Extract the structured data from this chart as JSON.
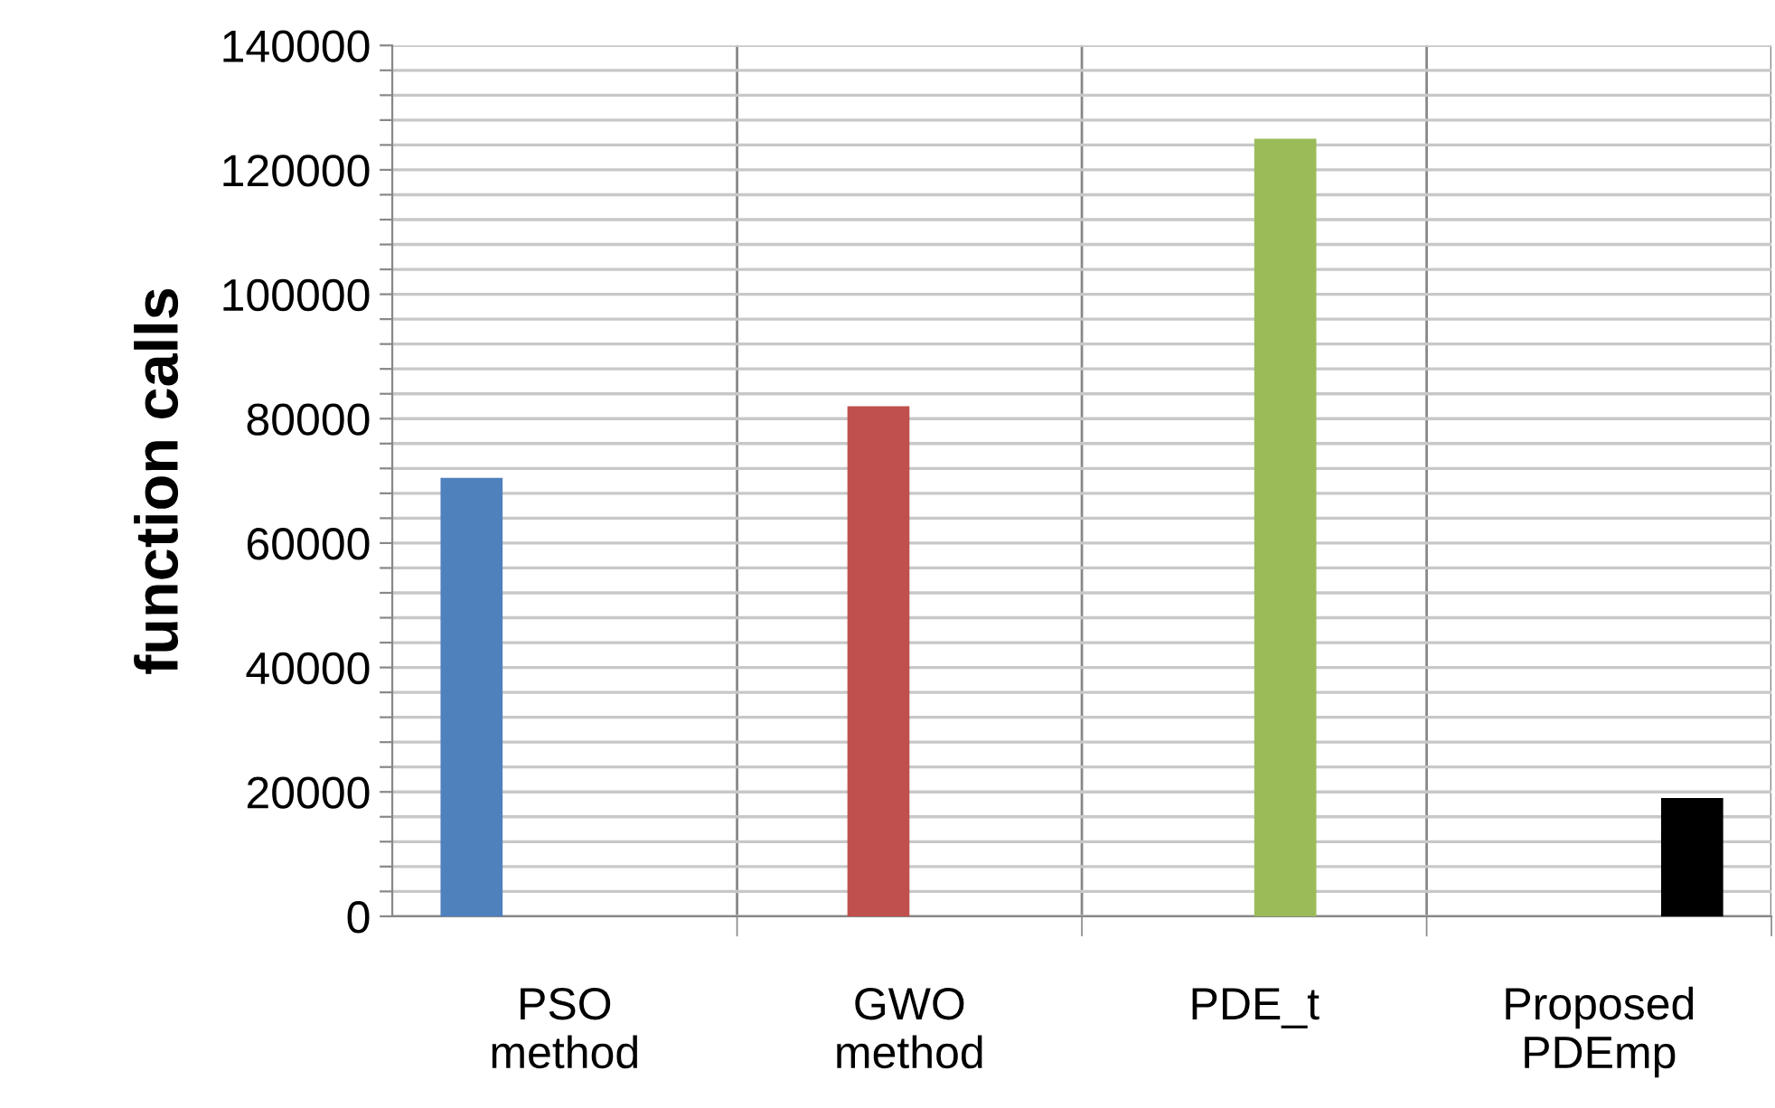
{
  "chart_data": {
    "type": "bar",
    "ylabel": "function calls",
    "categories": [
      "PSO\nmethod",
      "GWO\nmethod",
      "PDE_t",
      "Proposed\nPDEmp"
    ],
    "series": [
      {
        "color": "#4f81bd",
        "values": [
          70500,
          null,
          null,
          null
        ]
      },
      {
        "color": "#c0504d",
        "values": [
          null,
          82000,
          null,
          null
        ]
      },
      {
        "color": "#9bbb59",
        "values": [
          null,
          null,
          125000,
          null
        ]
      },
      {
        "color": "#000000",
        "values": [
          null,
          null,
          null,
          19000
        ]
      }
    ],
    "ylim": [
      0,
      140000
    ],
    "yticks": [
      0,
      {
        "value": 4000,
        "label": null
      },
      {
        "value": 8000,
        "label": null
      },
      {
        "value": 12000,
        "label": null
      },
      {
        "value": 16000,
        "label": null
      },
      20000,
      {
        "value": 24000,
        "label": null
      },
      {
        "value": 28000,
        "label": null
      },
      {
        "value": 32000,
        "label": null
      },
      {
        "value": 36000,
        "label": null
      },
      40000,
      {
        "value": 44000,
        "label": null
      },
      {
        "value": 48000,
        "label": null
      },
      {
        "value": 52000,
        "label": null
      },
      {
        "value": 56000,
        "label": null
      },
      60000,
      {
        "value": 64000,
        "label": null
      },
      {
        "value": 68000,
        "label": null
      },
      {
        "value": 72000,
        "label": null
      },
      {
        "value": 76000,
        "label": null
      },
      80000,
      {
        "value": 84000,
        "label": null
      },
      {
        "value": 88000,
        "label": null
      },
      {
        "value": 92000,
        "label": null
      },
      {
        "value": 96000,
        "label": null
      },
      100000,
      {
        "value": 104000,
        "label": null
      },
      {
        "value": 108000,
        "label": null
      },
      {
        "value": 112000,
        "label": null
      },
      {
        "value": 116000,
        "label": null
      },
      120000,
      {
        "value": 124000,
        "label": null
      },
      {
        "value": 128000,
        "label": null
      },
      {
        "value": 132000,
        "label": null
      },
      {
        "value": 136000,
        "label": null
      },
      140000
    ],
    "grid": true
  }
}
